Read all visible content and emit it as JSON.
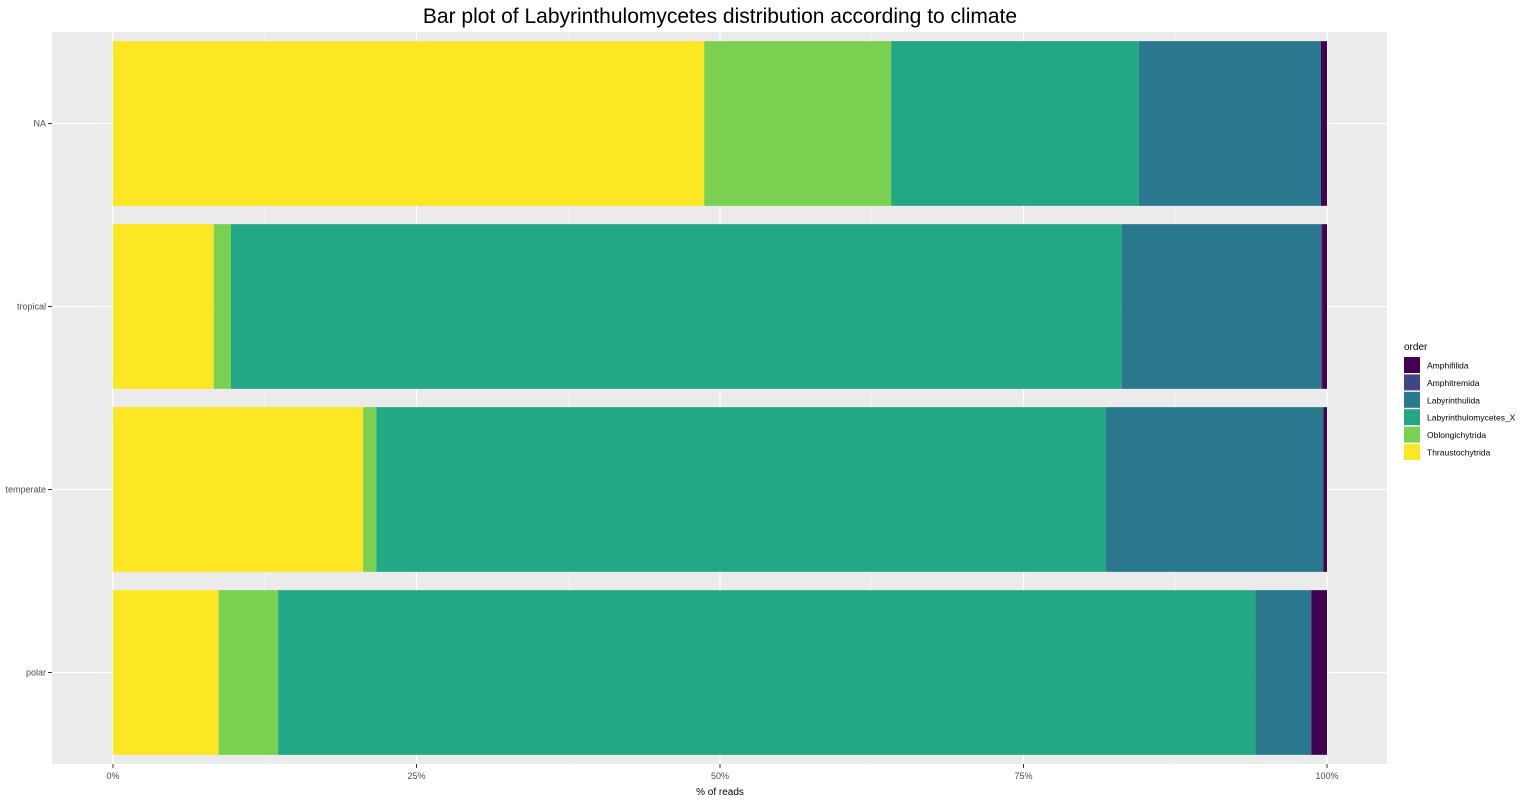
{
  "chart_data": {
    "type": "bar",
    "orientation": "horizontal",
    "stacked": true,
    "title": "Bar plot of Labyrinthulomycetes distribution according to climate",
    "xlabel": "% of reads",
    "ylabel": "",
    "xlim": [
      0,
      1
    ],
    "x_ticks": [
      {
        "value": 0,
        "label": "0%"
      },
      {
        "value": 0.25,
        "label": "25%"
      },
      {
        "value": 0.5,
        "label": "50%"
      },
      {
        "value": 0.75,
        "label": "75%"
      },
      {
        "value": 1,
        "label": "100%"
      }
    ],
    "categories": [
      "polar",
      "temperate",
      "tropical",
      "NA"
    ],
    "grid": true,
    "legend": {
      "title": "order",
      "position": "right"
    },
    "series": [
      {
        "name": "Thraustochytrida",
        "color": "#FDE725",
        "values": [
          0.087,
          0.206,
          0.083,
          0.487
        ]
      },
      {
        "name": "Oblongichytrida",
        "color": "#7AD151",
        "values": [
          0.049,
          0.011,
          0.014,
          0.154
        ]
      },
      {
        "name": "Labyrinthulomycetes_X",
        "color": "#22A884",
        "values": [
          0.805,
          0.601,
          0.734,
          0.204
        ]
      },
      {
        "name": "Labyrinthulida",
        "color": "#2A788E",
        "values": [
          0.046,
          0.179,
          0.164,
          0.15
        ]
      },
      {
        "name": "Amphitremida",
        "color": "#414487",
        "values": [
          0.0,
          0.0,
          0.001,
          0.0
        ]
      },
      {
        "name": "Amphifilida",
        "color": "#440154",
        "values": [
          0.013,
          0.003,
          0.004,
          0.005
        ]
      }
    ],
    "legend_order": [
      "Amphifilida",
      "Amphitremida",
      "Labyrinthulida",
      "Labyrinthulomycetes_X",
      "Oblongichytrida",
      "Thraustochytrida"
    ]
  }
}
